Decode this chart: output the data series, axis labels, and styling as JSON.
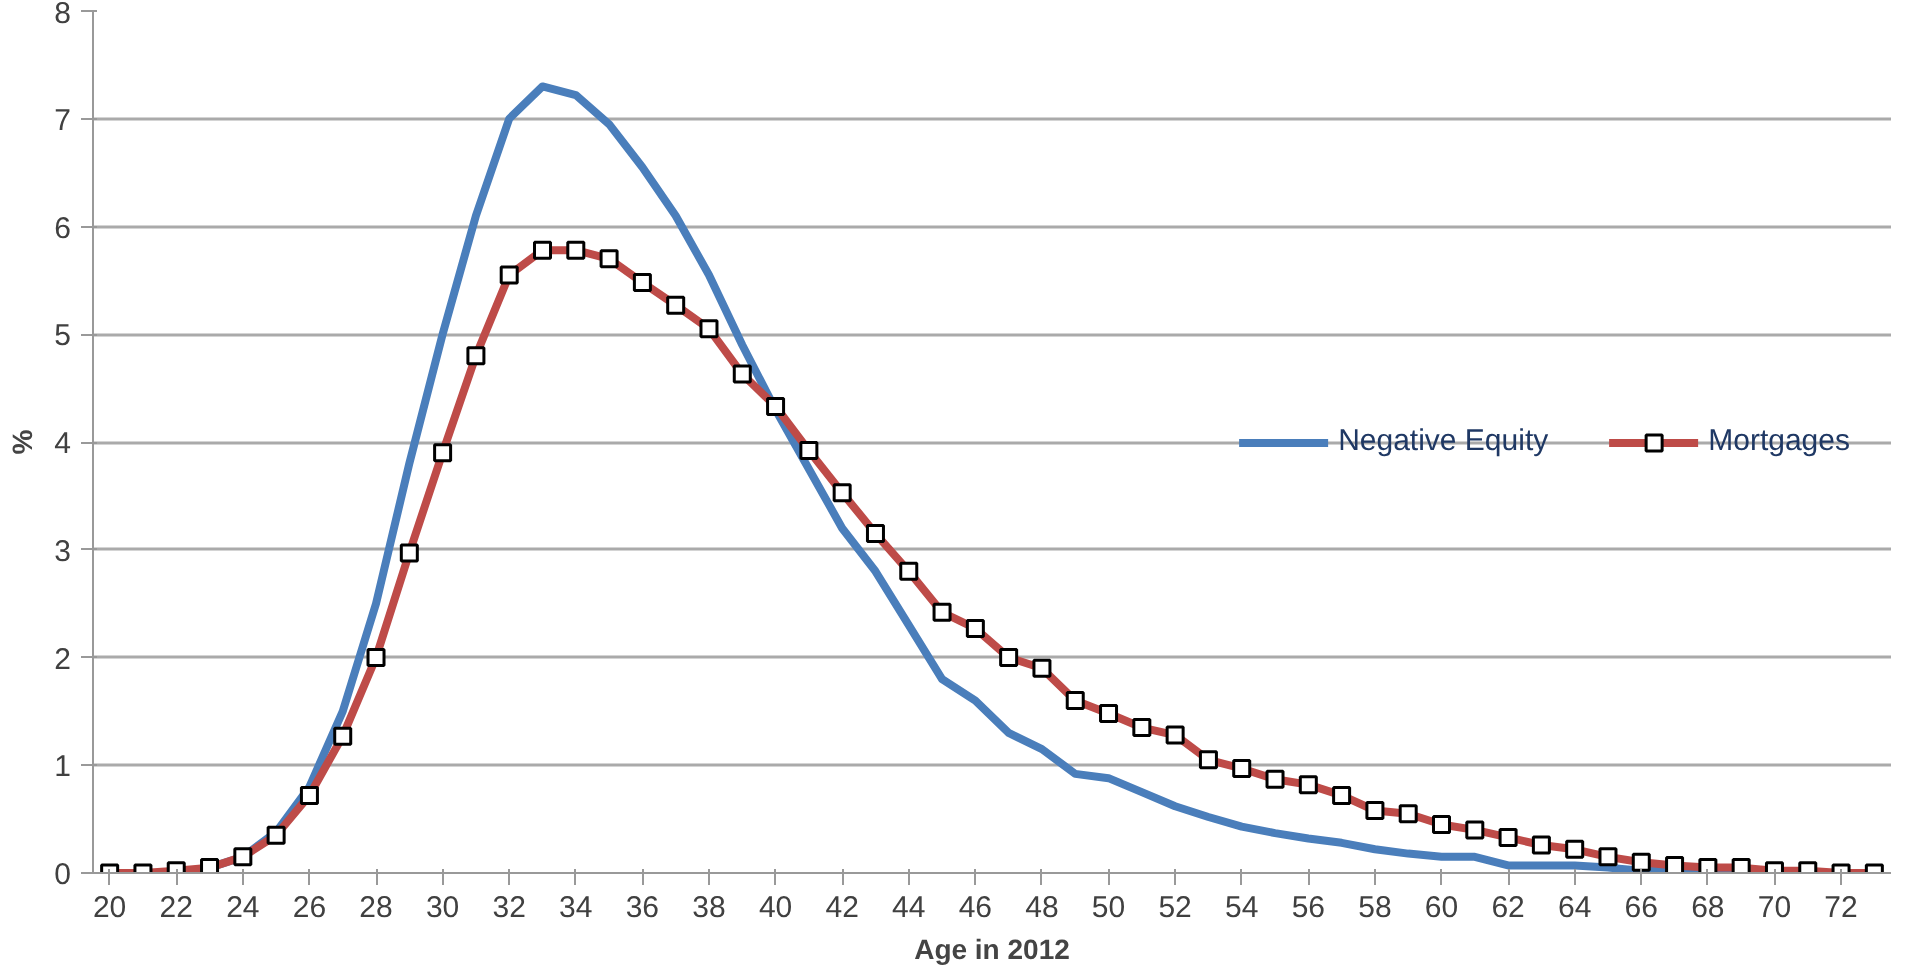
{
  "chart_data": {
    "type": "line",
    "xlabel": "Age in 2012",
    "ylabel": "%",
    "x": [
      20,
      21,
      22,
      23,
      24,
      25,
      26,
      27,
      28,
      29,
      30,
      31,
      32,
      33,
      34,
      35,
      36,
      37,
      38,
      39,
      40,
      41,
      42,
      43,
      44,
      45,
      46,
      47,
      48,
      49,
      50,
      51,
      52,
      53,
      54,
      55,
      56,
      57,
      58,
      59,
      60,
      61,
      62,
      63,
      64,
      65,
      66,
      67,
      68,
      69,
      70,
      71,
      72,
      73
    ],
    "xlim": [
      19.5,
      73.5
    ],
    "xticks": [
      20,
      22,
      24,
      26,
      28,
      30,
      32,
      34,
      36,
      38,
      40,
      42,
      44,
      46,
      48,
      50,
      52,
      54,
      56,
      58,
      60,
      62,
      64,
      66,
      68,
      70,
      72
    ],
    "ylim": [
      0,
      8
    ],
    "yticks": [
      0,
      1,
      2,
      3,
      4,
      5,
      6,
      7,
      8
    ],
    "grid": "y",
    "legend": "right",
    "series": [
      {
        "name": "Negative Equity",
        "color": "#4a7ebb",
        "marker": "none",
        "values": [
          null,
          null,
          null,
          0.05,
          0.15,
          0.38,
          0.8,
          1.5,
          2.5,
          3.8,
          5.0,
          6.1,
          7.0,
          7.3,
          7.22,
          6.95,
          6.55,
          6.1,
          5.55,
          4.9,
          4.3,
          3.75,
          3.2,
          2.8,
          2.3,
          1.8,
          1.6,
          1.3,
          1.15,
          0.92,
          0.88,
          0.75,
          0.62,
          0.52,
          0.43,
          0.37,
          0.32,
          0.28,
          0.22,
          0.18,
          0.15,
          0.15,
          0.07,
          0.07,
          0.07,
          0.05,
          0.02,
          0.02,
          0.01,
          0.01,
          null,
          null,
          null,
          null
        ]
      },
      {
        "name": "Mortgages",
        "color": "#be4b48",
        "marker": "square",
        "values": [
          0,
          0,
          0.02,
          0.05,
          0.15,
          0.35,
          0.72,
          1.27,
          2.0,
          2.97,
          3.9,
          4.8,
          5.55,
          5.78,
          5.78,
          5.7,
          5.48,
          5.27,
          5.05,
          4.63,
          4.33,
          3.92,
          3.53,
          3.15,
          2.8,
          2.42,
          2.27,
          2.0,
          1.9,
          1.6,
          1.48,
          1.35,
          1.28,
          1.05,
          0.97,
          0.87,
          0.82,
          0.72,
          0.58,
          0.55,
          0.45,
          0.4,
          0.33,
          0.26,
          0.22,
          0.15,
          0.1,
          0.07,
          0.05,
          0.05,
          0.02,
          0.02,
          0,
          0
        ]
      }
    ]
  }
}
